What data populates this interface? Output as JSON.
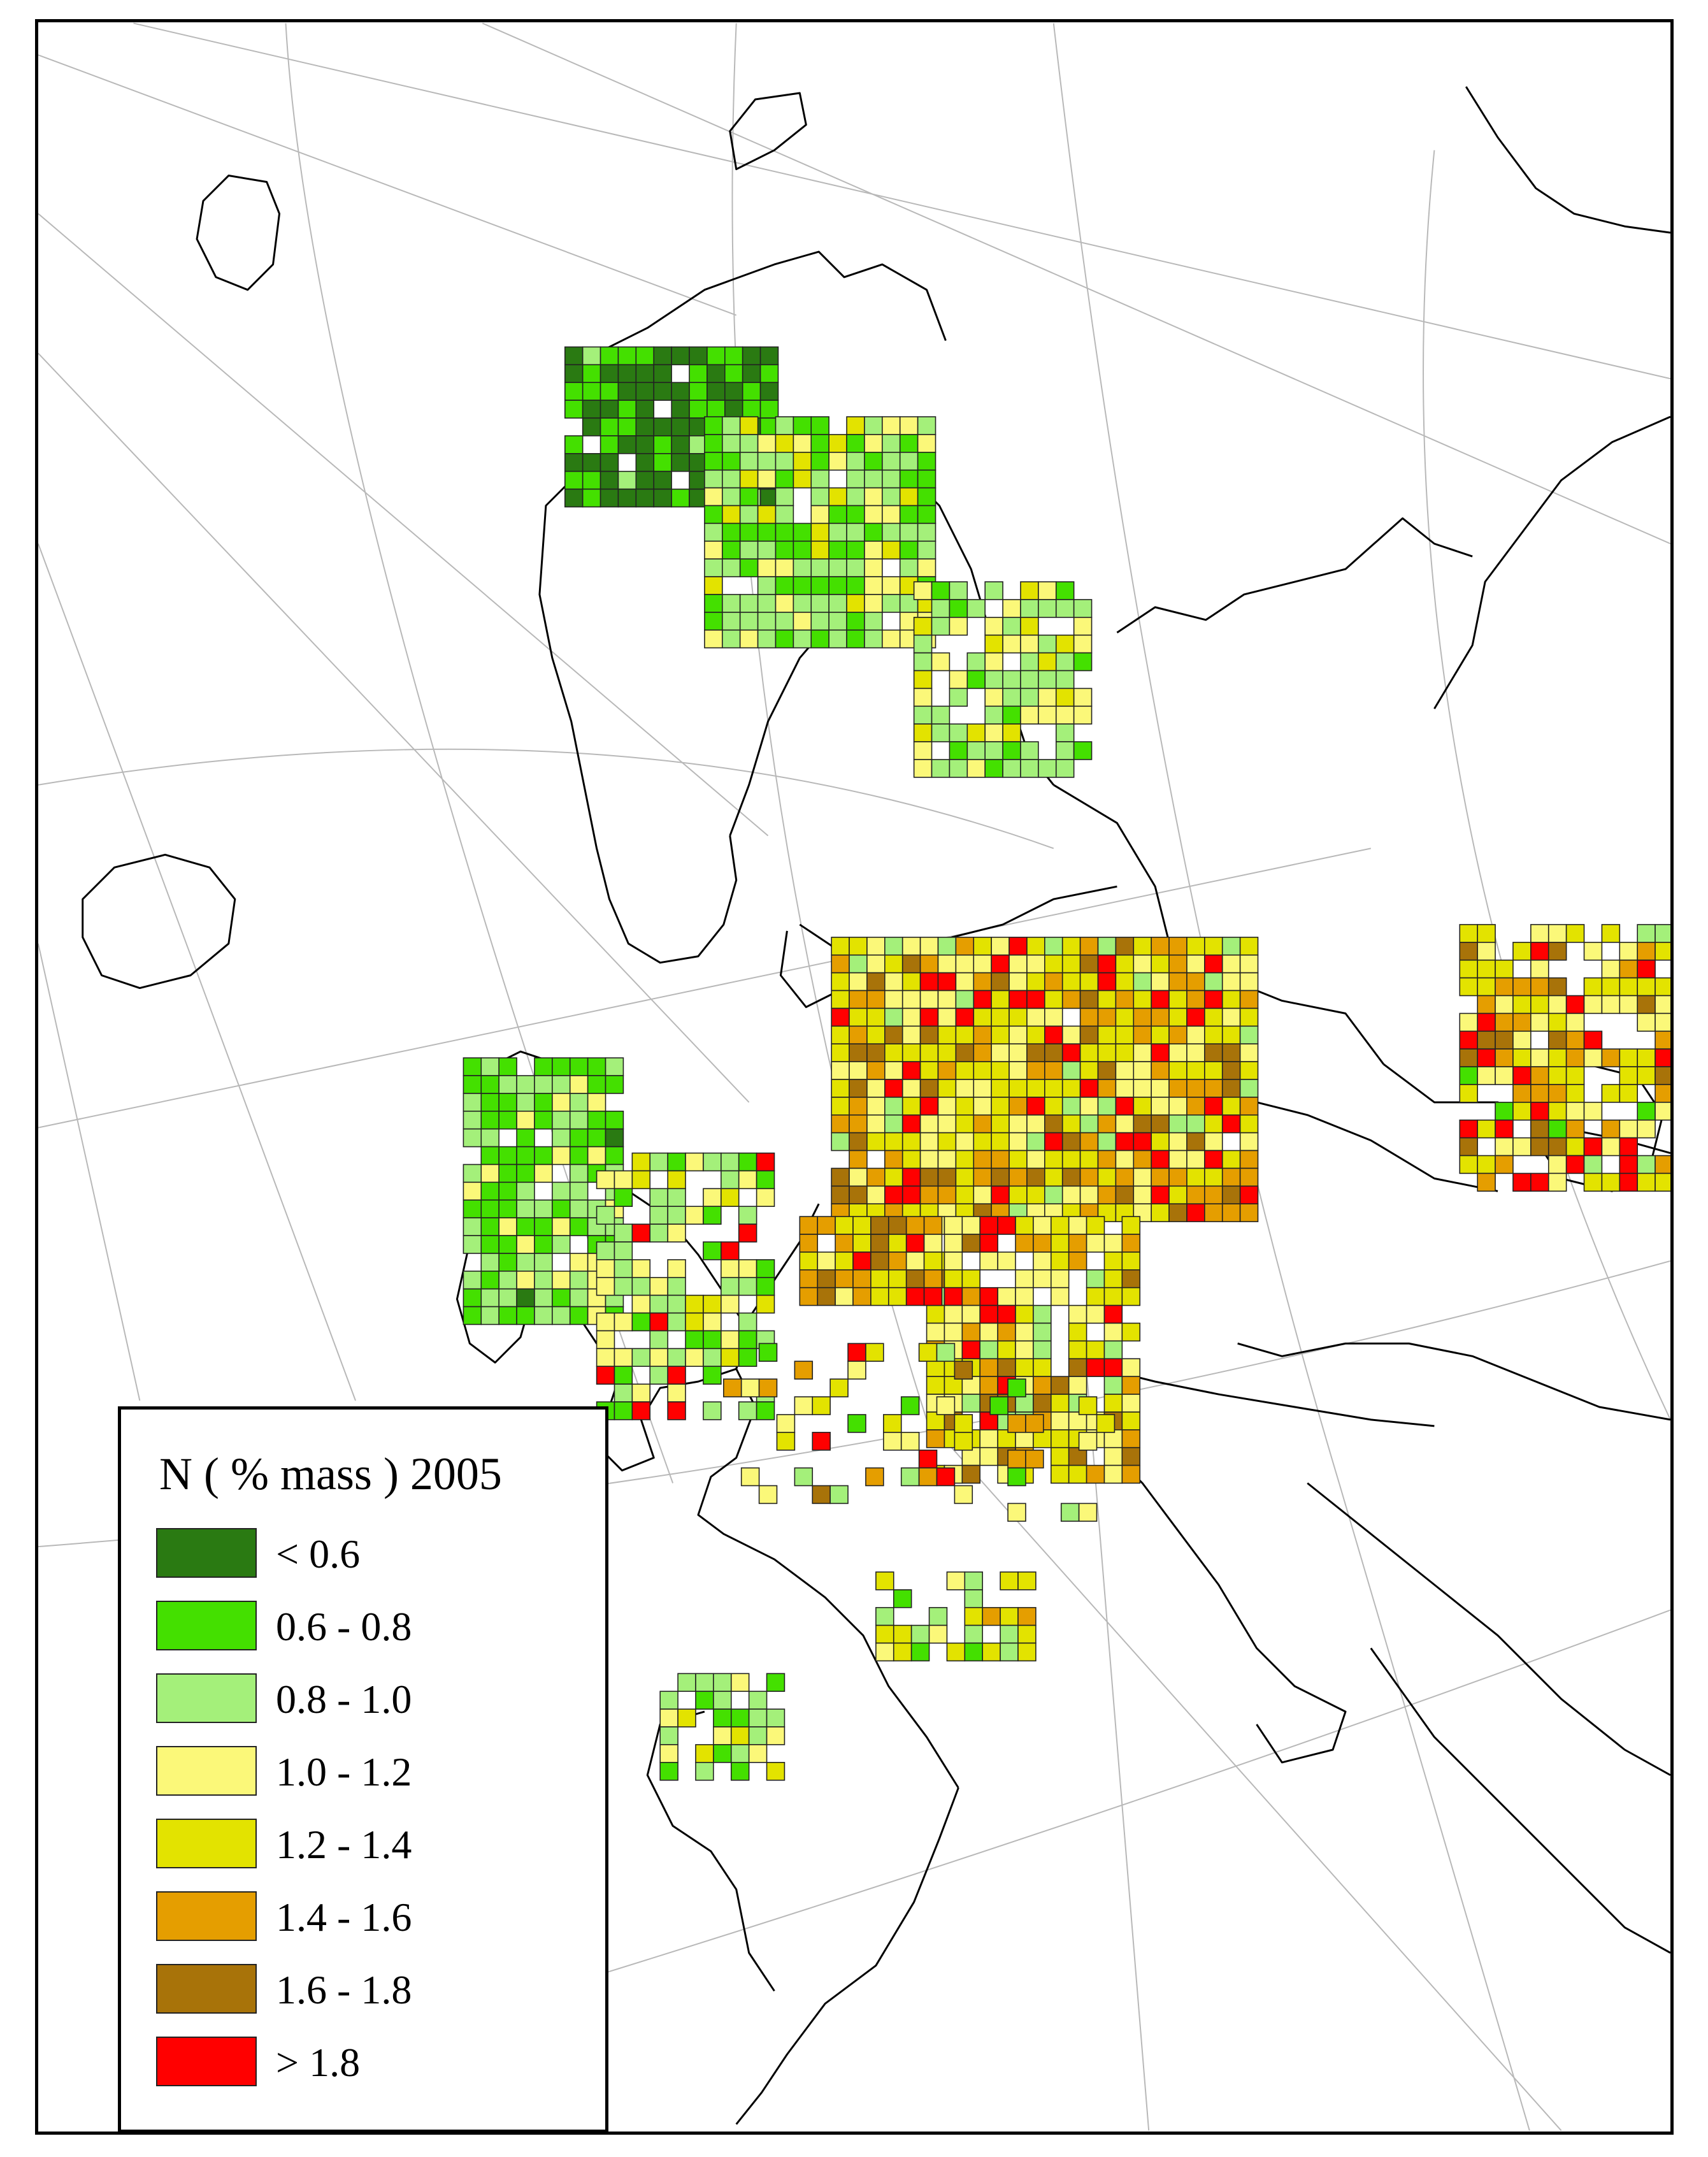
{
  "legend": {
    "title": "N ( % mass ) 2005",
    "classes": [
      {
        "label": "< 0.6",
        "color": "#2a7a12"
      },
      {
        "label": "0.6 - 0.8",
        "color": "#44e000"
      },
      {
        "label": "0.8 - 1.0",
        "color": "#a4f07a"
      },
      {
        "label": "1.0 - 1.2",
        "color": "#fbf879"
      },
      {
        "label": "1.2 - 1.4",
        "color": "#e3e300"
      },
      {
        "label": "1.4 - 1.6",
        "color": "#e59e00"
      },
      {
        "label": "1.6 - 1.8",
        "color": "#a87309"
      },
      {
        "label": "> 1.8",
        "color": "#ff0000"
      }
    ]
  },
  "map": {
    "region": "Europe",
    "projection": "polar-stereographic",
    "graticule": true,
    "coastlines": true
  }
}
